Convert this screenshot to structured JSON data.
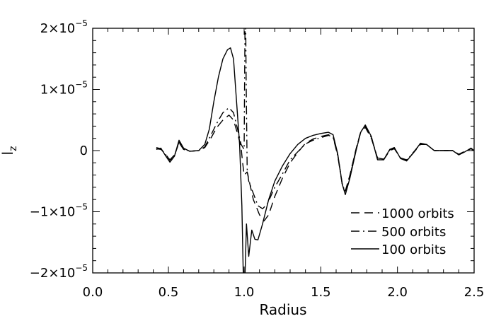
{
  "chart_data": {
    "type": "line",
    "title": "",
    "xlabel": "Radius",
    "ylabel": "l",
    "ylabel_sub": "z",
    "xlim": [
      0.0,
      2.5
    ],
    "ylim": [
      -2.1e-05,
      2e-05
    ],
    "x_ticks": [
      {
        "value": 0.0,
        "label": "0.0"
      },
      {
        "value": 0.5,
        "label": "0.5"
      },
      {
        "value": 1.0,
        "label": "1.0"
      },
      {
        "value": 1.5,
        "label": "1.5"
      },
      {
        "value": 2.0,
        "label": "2.0"
      },
      {
        "value": 2.5,
        "label": "2.5"
      }
    ],
    "y_ticks": [
      {
        "value": 2e-05,
        "mant": "2×10",
        "exp": "−5"
      },
      {
        "value": 1e-05,
        "mant": "1×10",
        "exp": "−5"
      },
      {
        "value": 0,
        "mant": "0",
        "exp": ""
      },
      {
        "value": -1e-05,
        "mant": "−1×10",
        "exp": "−5"
      },
      {
        "value": -2e-05,
        "mant": "−2×10",
        "exp": "−5"
      }
    ],
    "grid": false,
    "legend_position": "bottom-right",
    "series": [
      {
        "name": "1000 orbits",
        "dash": "dashed",
        "points": [
          [
            0.42,
            3e-07
          ],
          [
            0.45,
            2e-07
          ],
          [
            0.48,
            -5e-07
          ],
          [
            0.51,
            -1.6e-06
          ],
          [
            0.54,
            -8e-07
          ],
          [
            0.57,
            1.3e-06
          ],
          [
            0.6,
            2e-07
          ],
          [
            0.64,
            -1e-07
          ],
          [
            0.7,
            0.0
          ],
          [
            0.74,
            5e-07
          ],
          [
            0.78,
            2e-06
          ],
          [
            0.82,
            3.8e-06
          ],
          [
            0.86,
            5e-06
          ],
          [
            0.9,
            5.8e-06
          ],
          [
            0.93,
            5e-06
          ],
          [
            0.96,
            2.5e-06
          ],
          [
            0.98,
            5e-07
          ],
          [
            0.99,
            -2e-06
          ],
          [
            1.0,
            -4e-06
          ],
          [
            1.02,
            -3.5e-06
          ],
          [
            1.06,
            -8e-06
          ],
          [
            1.1,
            -1.05e-05
          ],
          [
            1.13,
            -1.15e-05
          ],
          [
            1.16,
            -1.05e-05
          ],
          [
            1.2,
            -7.5e-06
          ],
          [
            1.25,
            -4.5e-06
          ],
          [
            1.3,
            -2e-06
          ],
          [
            1.35,
            -3e-07
          ],
          [
            1.4,
            1.2e-06
          ],
          [
            1.45,
            1.9e-06
          ],
          [
            1.5,
            2.3e-06
          ],
          [
            1.55,
            2.6e-06
          ],
          [
            1.58,
            2.3e-06
          ],
          [
            1.61,
            -6e-07
          ],
          [
            1.64,
            -5.5e-06
          ],
          [
            1.66,
            -6.6e-06
          ],
          [
            1.69,
            -4e-06
          ],
          [
            1.73,
            3e-07
          ],
          [
            1.76,
            3e-06
          ],
          [
            1.79,
            3.8e-06
          ],
          [
            1.83,
            2e-06
          ],
          [
            1.87,
            -1.2e-06
          ],
          [
            1.91,
            -1.5e-06
          ],
          [
            1.95,
            0.0
          ],
          [
            1.98,
            3e-07
          ],
          [
            2.02,
            -1.2e-06
          ],
          [
            2.06,
            -1.5e-06
          ],
          [
            2.1,
            -5e-07
          ],
          [
            2.15,
            1e-06
          ],
          [
            2.19,
            1e-06
          ],
          [
            2.24,
            0.0
          ],
          [
            2.3,
            0.0
          ],
          [
            2.36,
            0.0
          ],
          [
            2.4,
            -6e-07
          ],
          [
            2.44,
            -2e-07
          ],
          [
            2.48,
            3e-07
          ],
          [
            2.5,
            0.0
          ]
        ]
      },
      {
        "name": "500 orbits",
        "dash": "dashdot",
        "points": [
          [
            0.42,
            5e-07
          ],
          [
            0.45,
            3e-07
          ],
          [
            0.48,
            -6e-07
          ],
          [
            0.51,
            -1.5e-06
          ],
          [
            0.54,
            -7e-07
          ],
          [
            0.57,
            1.4e-06
          ],
          [
            0.6,
            3e-07
          ],
          [
            0.64,
            -1e-07
          ],
          [
            0.7,
            0.0
          ],
          [
            0.74,
            6e-07
          ],
          [
            0.78,
            2.5e-06
          ],
          [
            0.82,
            4.5e-06
          ],
          [
            0.86,
            6.2e-06
          ],
          [
            0.9,
            7e-06
          ],
          [
            0.93,
            6.2e-06
          ],
          [
            0.96,
            3.2e-06
          ],
          [
            0.98,
            1e-06
          ],
          [
            1.0,
            2e-07
          ],
          [
            1.003,
            1e-05
          ],
          [
            1.006,
            2.1e-05
          ],
          [
            1.01,
            2.1e-05
          ],
          [
            1.013,
            1.2e-05
          ],
          [
            1.02,
            -3e-06
          ],
          [
            1.03,
            -5e-06
          ],
          [
            1.06,
            -7e-06
          ],
          [
            1.09,
            -9e-06
          ],
          [
            1.12,
            -9.5e-06
          ],
          [
            1.15,
            -8.8e-06
          ],
          [
            1.2,
            -6e-06
          ],
          [
            1.25,
            -3.8e-06
          ],
          [
            1.3,
            -1.5e-06
          ],
          [
            1.35,
            -2e-07
          ],
          [
            1.4,
            1.1e-06
          ],
          [
            1.45,
            1.7e-06
          ],
          [
            1.5,
            2.1e-06
          ],
          [
            1.55,
            2.5e-06
          ],
          [
            1.58,
            2.2e-06
          ],
          [
            1.61,
            -8e-07
          ],
          [
            1.64,
            -5.6e-06
          ],
          [
            1.66,
            -6.7e-06
          ],
          [
            1.69,
            -4.2e-06
          ],
          [
            1.73,
            2e-07
          ],
          [
            1.76,
            3.1e-06
          ],
          [
            1.79,
            4e-06
          ],
          [
            1.83,
            2.1e-06
          ],
          [
            1.87,
            -1.2e-06
          ],
          [
            1.91,
            -1.4e-06
          ],
          [
            1.95,
            1e-07
          ],
          [
            1.98,
            4e-07
          ],
          [
            2.02,
            -1.2e-06
          ],
          [
            2.06,
            -1.6e-06
          ],
          [
            2.1,
            -4e-07
          ],
          [
            2.15,
            1.1e-06
          ],
          [
            2.19,
            1e-06
          ],
          [
            2.24,
            0.0
          ],
          [
            2.3,
            0.0
          ],
          [
            2.36,
            0.0
          ],
          [
            2.4,
            -6e-07
          ],
          [
            2.44,
            -1e-07
          ],
          [
            2.48,
            2e-07
          ],
          [
            2.5,
            0.0
          ]
        ]
      },
      {
        "name": "100 orbits",
        "dash": "solid",
        "points": [
          [
            0.42,
            2e-07
          ],
          [
            0.45,
            4e-07
          ],
          [
            0.48,
            -8e-07
          ],
          [
            0.51,
            -1.9e-06
          ],
          [
            0.54,
            -9e-07
          ],
          [
            0.57,
            1.7e-06
          ],
          [
            0.6,
            4e-07
          ],
          [
            0.64,
            -1e-07
          ],
          [
            0.7,
            0.0
          ],
          [
            0.74,
            1e-06
          ],
          [
            0.77,
            3.5e-06
          ],
          [
            0.8,
            8e-06
          ],
          [
            0.83,
            1.2e-05
          ],
          [
            0.86,
            1.5e-05
          ],
          [
            0.89,
            1.65e-05
          ],
          [
            0.91,
            1.68e-05
          ],
          [
            0.93,
            1.5e-05
          ],
          [
            0.95,
            8e-06
          ],
          [
            0.97,
            1e-06
          ],
          [
            0.985,
            -9e-06
          ],
          [
            0.995,
            -2.1e-05
          ],
          [
            1.005,
            -2.1e-05
          ],
          [
            1.015,
            -1.2e-05
          ],
          [
            1.03,
            -1.73e-05
          ],
          [
            1.05,
            -1.3e-05
          ],
          [
            1.07,
            -1.45e-05
          ],
          [
            1.09,
            -1.46e-05
          ],
          [
            1.12,
            -1.2e-05
          ],
          [
            1.16,
            -8e-06
          ],
          [
            1.2,
            -5e-06
          ],
          [
            1.25,
            -2.5e-06
          ],
          [
            1.3,
            -5e-07
          ],
          [
            1.35,
            1e-06
          ],
          [
            1.4,
            2e-06
          ],
          [
            1.45,
            2.5e-06
          ],
          [
            1.5,
            2.8e-06
          ],
          [
            1.55,
            3e-06
          ],
          [
            1.58,
            2.6e-06
          ],
          [
            1.61,
            -5e-07
          ],
          [
            1.64,
            -5.5e-06
          ],
          [
            1.66,
            -7.2e-06
          ],
          [
            1.69,
            -4.5e-06
          ],
          [
            1.73,
            0.0
          ],
          [
            1.76,
            3e-06
          ],
          [
            1.79,
            4.2e-06
          ],
          [
            1.83,
            2.3e-06
          ],
          [
            1.87,
            -1.5e-06
          ],
          [
            1.91,
            -1.5e-06
          ],
          [
            1.95,
            2e-07
          ],
          [
            1.98,
            5e-07
          ],
          [
            2.02,
            -1.3e-06
          ],
          [
            2.06,
            -1.7e-06
          ],
          [
            2.1,
            -5e-07
          ],
          [
            2.15,
            1.2e-06
          ],
          [
            2.19,
            1e-06
          ],
          [
            2.24,
            0.0
          ],
          [
            2.3,
            0.0
          ],
          [
            2.36,
            0.0
          ],
          [
            2.4,
            -7e-07
          ],
          [
            2.44,
            -2e-07
          ],
          [
            2.48,
            4e-07
          ],
          [
            2.5,
            0.0
          ]
        ]
      }
    ]
  }
}
